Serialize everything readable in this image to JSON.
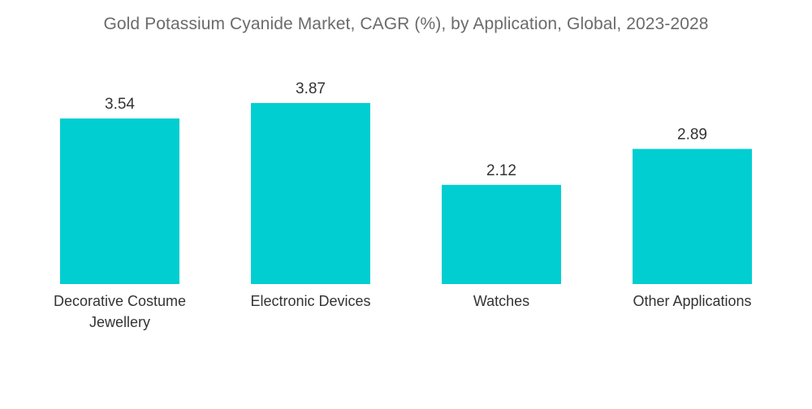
{
  "chart_data": {
    "type": "bar",
    "title": "Gold Potassium Cyanide Market, CAGR (%), by Application, Global, 2023-2028",
    "categories": [
      [
        "Decorative Costume",
        "Jewellery"
      ],
      [
        "Electronic Devices"
      ],
      [
        "Watches"
      ],
      [
        "Other Applications"
      ]
    ],
    "values": [
      3.54,
      3.87,
      2.12,
      2.89
    ],
    "value_labels": [
      "3.54",
      "3.87",
      "2.12",
      "2.89"
    ],
    "xlabel": "",
    "ylabel": "",
    "ylim": [
      0,
      4.5
    ],
    "grid": false,
    "legend": "none",
    "bar_color": "#00CED1"
  }
}
